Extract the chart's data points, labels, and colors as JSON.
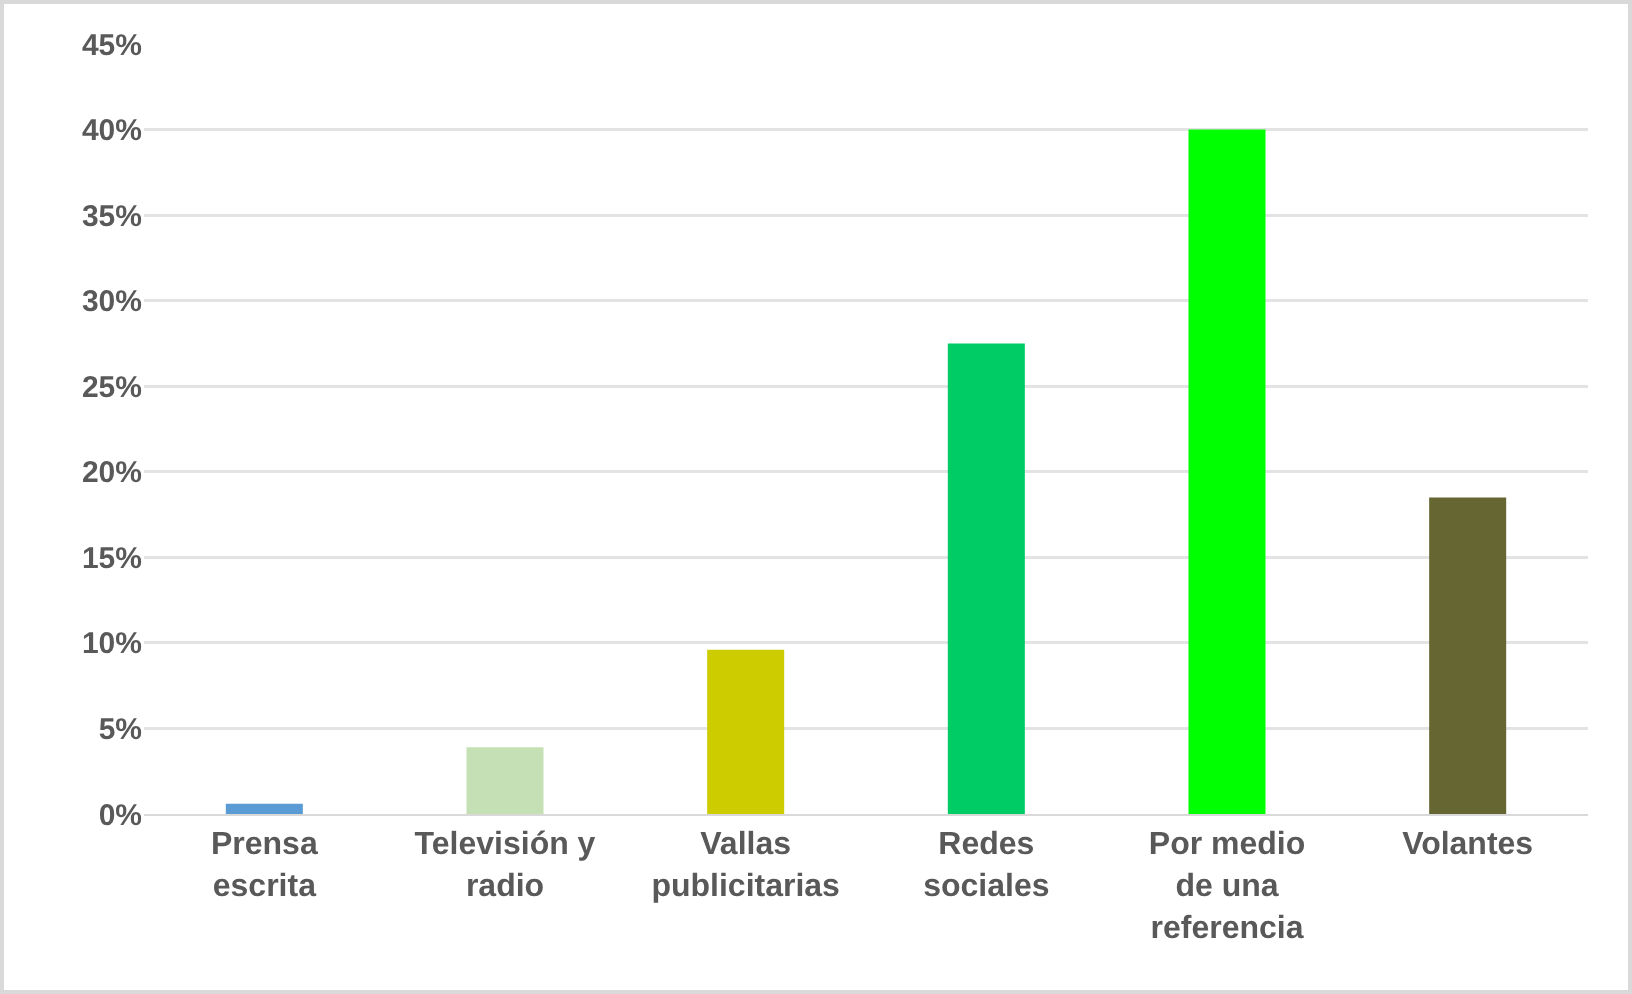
{
  "chart_data": {
    "type": "bar",
    "categories": [
      "Prensa escrita",
      "Televisión y radio",
      "Vallas publicitarias",
      "Redes sociales",
      "Por medio de una referencia",
      "Volantes"
    ],
    "values": [
      0.6,
      3.9,
      9.6,
      27.5,
      40,
      18.5
    ],
    "colors": [
      "#5b9bd5",
      "#c5e0b4",
      "#cccc00",
      "#00cc66",
      "#00ff00",
      "#666633"
    ],
    "ylim": [
      0,
      45
    ],
    "yticks": [
      {
        "value": 0,
        "label": "0%"
      },
      {
        "value": 5,
        "label": "5%"
      },
      {
        "value": 10,
        "label": "10%"
      },
      {
        "value": 15,
        "label": "15%"
      },
      {
        "value": 20,
        "label": "20%"
      },
      {
        "value": 25,
        "label": "25%"
      },
      {
        "value": 30,
        "label": "30%"
      },
      {
        "value": 35,
        "label": "35%"
      },
      {
        "value": 40,
        "label": "40%"
      },
      {
        "value": 45,
        "label": "45%"
      }
    ],
    "grid": "y"
  }
}
